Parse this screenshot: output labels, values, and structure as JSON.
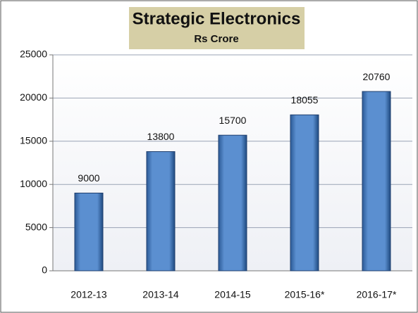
{
  "chart_data": {
    "type": "bar",
    "title": "Strategic Electronics",
    "subtitle": "Rs Crore",
    "categories": [
      "2012-13",
      "2013-14",
      "2014-15",
      "2015-16*",
      "2016-17*"
    ],
    "values": [
      9000,
      13800,
      15700,
      18055,
      20760
    ],
    "color": "#4a7ebf",
    "ylim": [
      0,
      25000
    ],
    "yticks": [
      0,
      5000,
      10000,
      15000,
      20000,
      25000
    ],
    "grid": true
  }
}
